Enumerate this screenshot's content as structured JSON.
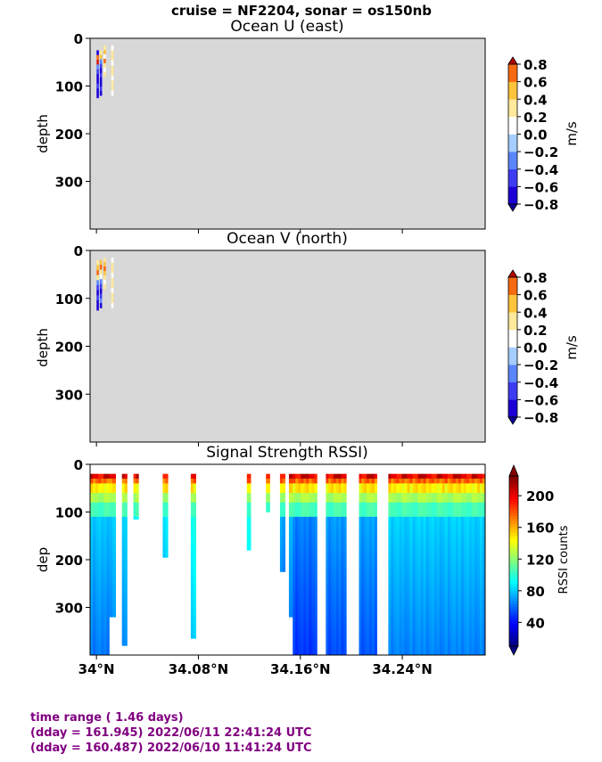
{
  "figure": {
    "suptitle": "cruise = NF2204,  sonar = os150nb",
    "footer": {
      "line1": "time range ( 1.46 days)",
      "line2": "(dday = 161.945) 2022/06/11 22:41:24 UTC",
      "line3": "(dday = 160.487) 2022/06/10 11:41:24 UTC"
    }
  },
  "chart_data": [
    {
      "type": "heatmap",
      "title": "Ocean U (east)",
      "ylabel": "depth",
      "yticks": [
        0,
        100,
        200,
        300
      ],
      "ylim": [
        400,
        0
      ],
      "xlim": [
        33.995,
        34.305
      ],
      "background": "#d8d8d8",
      "colorbar": {
        "label": "m/s",
        "ticks": [
          "0.8",
          "0.6",
          "0.4",
          "0.2",
          "0.0",
          "−0.2",
          "−0.4",
          "−0.6",
          "−0.8"
        ],
        "extend": "both"
      },
      "data_columns": [
        {
          "x": 34.001,
          "depth_range": [
            25,
            125
          ],
          "values": [
            "-0.8",
            "0.6",
            "0.8",
            "-0.4",
            "-0.6",
            "-0.8",
            "-0.8",
            "-0.6",
            "-0.8",
            "-0.8"
          ]
        },
        {
          "x": 34.0035,
          "depth_range": [
            25,
            120
          ],
          "values": [
            "0.2",
            "0.4",
            "-0.4",
            "-0.6",
            "-0.8",
            "-0.6",
            "-0.8",
            "-0.8",
            "-0.6",
            "-0.8"
          ]
        },
        {
          "x": 34.0065,
          "depth_range": [
            15,
            80
          ],
          "values": [
            "0.2",
            "0.4",
            "0.0",
            "0.6",
            "0.2",
            "0.0",
            "0.2"
          ]
        },
        {
          "x": 34.0125,
          "depth_range": [
            15,
            120
          ],
          "values": [
            "0.0",
            "0.2",
            "0.2",
            "0.0",
            "0.2",
            "0.2",
            "0.0",
            "0.2",
            "0.2",
            "0.0"
          ]
        }
      ]
    },
    {
      "type": "heatmap",
      "title": "Ocean V (north)",
      "ylabel": "depth",
      "yticks": [
        0,
        100,
        200,
        300
      ],
      "ylim": [
        400,
        0
      ],
      "xlim": [
        33.995,
        34.305
      ],
      "background": "#d8d8d8",
      "colorbar": {
        "label": "m/s",
        "ticks": [
          "0.8",
          "0.6",
          "0.4",
          "0.2",
          "0.0",
          "−0.2",
          "−0.4",
          "−0.6",
          "−0.8"
        ],
        "extend": "both"
      },
      "data_columns": [
        {
          "x": 34.001,
          "depth_range": [
            20,
            125
          ],
          "values": [
            "0.2",
            "0.4",
            "0.6",
            "0.2",
            "-0.4",
            "-0.6",
            "-0.8",
            "-0.6",
            "-0.8",
            "-0.8"
          ]
        },
        {
          "x": 34.0035,
          "depth_range": [
            20,
            120
          ],
          "values": [
            "0.4",
            "0.6",
            "0.2",
            "0.0",
            "-0.4",
            "-0.6",
            "-0.8",
            "-0.6",
            "-0.4",
            "-0.8"
          ]
        },
        {
          "x": 34.0065,
          "depth_range": [
            15,
            80
          ],
          "values": [
            "0.2",
            "0.4",
            "0.6",
            "0.4",
            "0.2",
            "0.0",
            "0.2"
          ]
        },
        {
          "x": 34.0125,
          "depth_range": [
            15,
            120
          ],
          "values": [
            "0.0",
            "0.2",
            "0.2",
            "0.0",
            "0.2",
            "0.2",
            "0.0",
            "0.2",
            "0.2",
            "0.0"
          ]
        }
      ]
    },
    {
      "type": "heatmap",
      "title": "Signal Strength RSSI)",
      "ylabel": "dep",
      "yticks": [
        0,
        100,
        200,
        300
      ],
      "ylim": [
        400,
        0
      ],
      "xlabel_ticks": [
        "34°N",
        "34.08°N",
        "34.16°N",
        "34.24°N"
      ],
      "xticks": [
        34.0,
        34.08,
        34.16,
        34.24
      ],
      "xlim": [
        33.995,
        34.305
      ],
      "background": "#ffffff",
      "colorbar": {
        "label": "RSSI counts",
        "ticks": [
          "200",
          "160",
          "120",
          "80",
          "40"
        ],
        "range": [
          10,
          225
        ],
        "extend": "both"
      },
      "columns": [
        {
          "x0": 33.995,
          "x1": 34.01,
          "bottom": 400,
          "base": 70
        },
        {
          "x0": 34.01,
          "x1": 34.015,
          "bottom": 320,
          "base": 72
        },
        {
          "x0": 34.02,
          "x1": 34.024,
          "bottom": 380,
          "base": 75
        },
        {
          "x0": 34.029,
          "x1": 34.033,
          "bottom": 115,
          "base": 80
        },
        {
          "x0": 34.052,
          "x1": 34.056,
          "bottom": 195,
          "base": 78
        },
        {
          "x0": 34.074,
          "x1": 34.078,
          "bottom": 365,
          "base": 85
        },
        {
          "x0": 34.118,
          "x1": 34.121,
          "bottom": 180,
          "base": 82
        },
        {
          "x0": 34.133,
          "x1": 34.136,
          "bottom": 100,
          "base": 80
        },
        {
          "x0": 34.144,
          "x1": 34.148,
          "bottom": 225,
          "base": 62
        },
        {
          "x0": 34.151,
          "x1": 34.154,
          "bottom": 320,
          "base": 65
        },
        {
          "x0": 34.154,
          "x1": 34.173,
          "bottom": 400,
          "base": 55
        },
        {
          "x0": 34.18,
          "x1": 34.196,
          "bottom": 400,
          "base": 60
        },
        {
          "x0": 34.206,
          "x1": 34.22,
          "bottom": 400,
          "base": 62
        },
        {
          "x0": 34.229,
          "x1": 34.305,
          "bottom": 400,
          "base": 72
        }
      ]
    }
  ]
}
